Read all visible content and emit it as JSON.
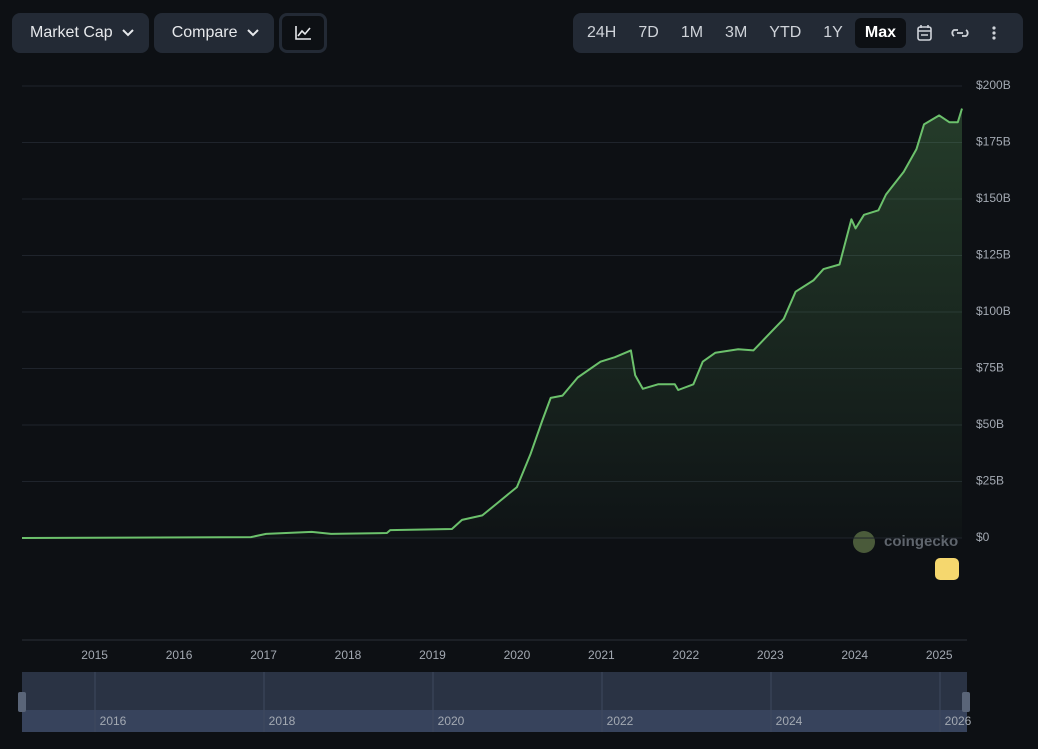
{
  "toolbar": {
    "metric": "Market Cap",
    "compare": "Compare",
    "ranges": [
      "24H",
      "7D",
      "1M",
      "3M",
      "YTD",
      "1Y",
      "Max"
    ],
    "selected": "Max"
  },
  "chart_data": {
    "type": "line",
    "color": "#6cc16c",
    "x": [
      2014.14,
      2016.85,
      2017.03,
      2017.57,
      2017.8,
      2018.46,
      2018.5,
      2019.23,
      2019.35,
      2019.59,
      2019.77,
      2020.0,
      2020.16,
      2020.3,
      2020.4,
      2020.54,
      2020.72,
      2020.99,
      2021.16,
      2021.35,
      2021.4,
      2021.49,
      2021.67,
      2021.87,
      2021.91,
      2022.09,
      2022.2,
      2022.35,
      2022.62,
      2022.8,
      2022.98,
      2023.16,
      2023.3,
      2023.51,
      2023.63,
      2023.82,
      2023.96,
      2024.01,
      2024.11,
      2024.28,
      2024.37,
      2024.58,
      2024.73,
      2024.82,
      2025.0,
      2025.12,
      2025.22,
      2025.27
    ],
    "values": [
      0,
      0.4,
      1.8,
      2.7,
      1.8,
      2.2,
      3.5,
      4,
      8,
      10,
      15.5,
      22.5,
      37,
      52,
      62,
      63,
      71,
      78,
      80,
      83,
      72,
      66,
      68,
      68,
      65.5,
      68,
      78,
      82,
      83.5,
      83,
      90,
      97,
      109,
      114,
      119,
      121,
      141,
      137,
      143,
      145,
      152,
      162,
      172,
      183,
      187,
      184,
      184,
      190
    ],
    "xlim": [
      2014.14,
      2025.27
    ],
    "xticks": [
      2015,
      2016,
      2017,
      2018,
      2019,
      2020,
      2021,
      2022,
      2023,
      2024,
      2025
    ],
    "ylim": [
      0,
      200
    ],
    "yticks": [
      {
        "value": 0,
        "label": "$0"
      },
      {
        "value": 25,
        "label": "$25B"
      },
      {
        "value": 50,
        "label": "$50B"
      },
      {
        "value": 75,
        "label": "$75B"
      },
      {
        "value": 100,
        "label": "$100B"
      },
      {
        "value": 125,
        "label": "$125B"
      },
      {
        "value": 150,
        "label": "$150B"
      },
      {
        "value": 175,
        "label": "$175B"
      },
      {
        "value": 200,
        "label": "$200B"
      }
    ],
    "grid": true,
    "watermark": "coingecko"
  },
  "navigator": {
    "labels": [
      "2016",
      "2018",
      "2020",
      "2022",
      "2024",
      "2026"
    ]
  }
}
